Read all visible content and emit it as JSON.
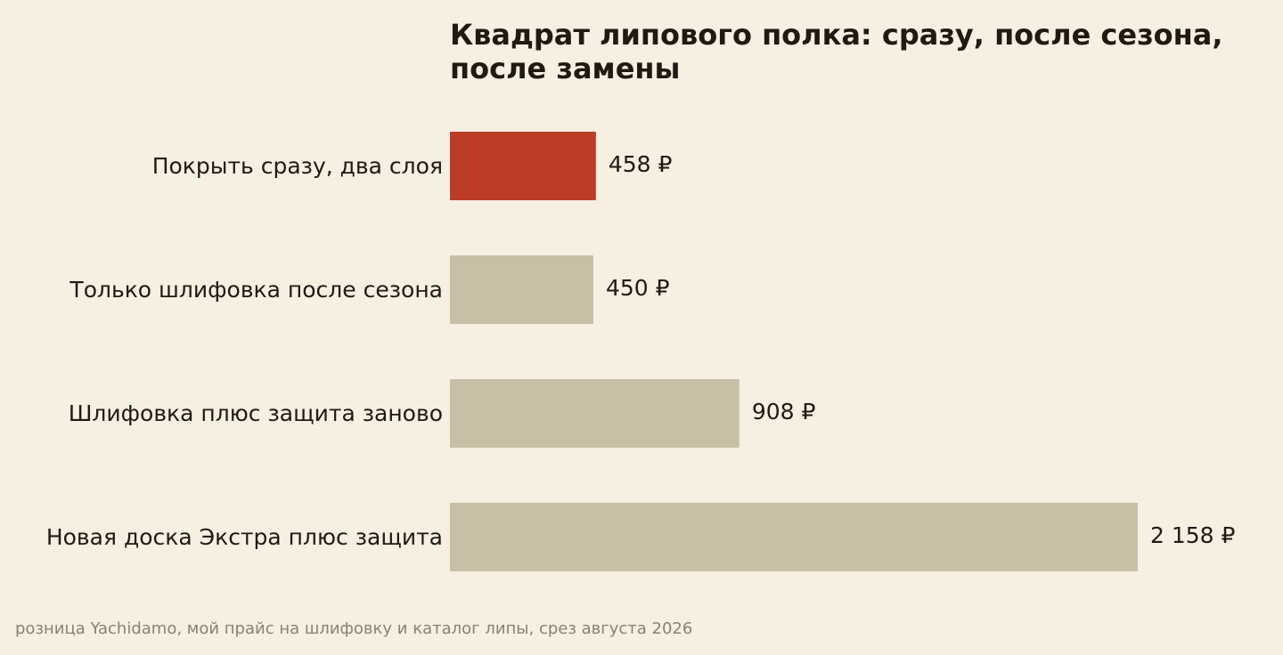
{
  "chart_data": {
    "type": "bar",
    "orientation": "horizontal",
    "title": "Квадрат липового полка: сразу, после сезона, после замены",
    "categories": [
      "Покрыть сразу, два слоя",
      "Только шлифовка после сезона",
      "Шлифовка плюс защита заново",
      "Новая доска Экстра плюс защита"
    ],
    "values": [
      458,
      450,
      908,
      2158
    ],
    "value_labels": [
      "458 ₽",
      "450 ₽",
      "908 ₽",
      "2 158 ₽"
    ],
    "unit": "₽",
    "highlight_index": 0,
    "xlim": [
      0,
      2158
    ],
    "grid": false,
    "legend": "none",
    "colors": {
      "highlight": "#bb3c27",
      "default": "#c9bfa6",
      "background": "#f6efe2",
      "text": "#1f1a12",
      "note": "#8a8175"
    }
  },
  "source_note": "розница Yachidamo, мой прайс на шлифовку и каталог липы, срез августа 2026"
}
